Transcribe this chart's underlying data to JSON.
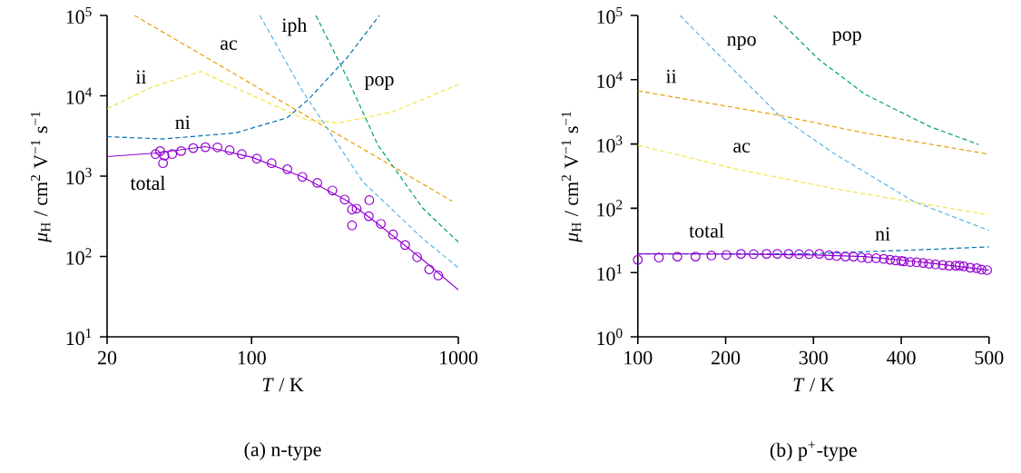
{
  "chart_data": [
    {
      "type": "line",
      "xlabel": "*T* / K",
      "ylabel": "*μ*$_{H}$ / cm$^{2}$ V$^{−1}$ s$^{−1}$",
      "annotations": [
        "(a) n-type"
      ],
      "log": "xy",
      "xlim": [
        20,
        1000
      ],
      "ylim": [
        10,
        100000
      ],
      "xticks": [
        20,
        100,
        1000
      ],
      "yticks": [
        {
          "value": 10,
          "label": "10$^{1}$"
        },
        {
          "value": 100,
          "label": "10$^{2}$"
        },
        {
          "value": 1000,
          "label": "10$^{3}$"
        },
        {
          "value": 10000,
          "label": "10$^{4}$"
        },
        {
          "value": 100000,
          "label": "10$^{5}$"
        }
      ],
      "series": [
        {
          "name": "ac",
          "color": "#e69f00",
          "line_style": "dashed",
          "x": [
            27.1,
            932
          ],
          "values": [
            100000,
            489
          ]
        },
        {
          "name": "ii",
          "color": "#f0e442",
          "line_style": "dashed",
          "x": [
            20,
            32.6,
            56.8,
            95.8,
            182,
            263,
            483,
            1000
          ],
          "values": [
            6900,
            12700,
            20100,
            10700,
            5090,
            4550,
            6330,
            13800
          ]
        },
        {
          "name": "ni",
          "color": "#0072b2",
          "line_style": "dashed",
          "x": [
            20,
            37.3,
            83.8,
            148.6,
            188,
            291,
            415
          ],
          "values": [
            3100,
            2900,
            3450,
            5320,
            8960,
            30200,
            100000
          ]
        },
        {
          "name": "iph",
          "color": "#56b4e9",
          "line_style": "dashed",
          "x": [
            109.6,
            175.8,
            344,
            676,
            1000
          ],
          "values": [
            100000,
            11600,
            859,
            165,
            72.5
          ]
        },
        {
          "name": "pop",
          "color": "#009e73",
          "line_style": "dashed",
          "x": [
            204.6,
            291,
            408,
            676,
            1000
          ],
          "values": [
            100000,
            16400,
            2440,
            394,
            151
          ]
        },
        {
          "name": "total",
          "color": "#9400d3",
          "line_style": "solid",
          "x": [
            20,
            33.7,
            59.8,
            100,
            176,
            291,
            408,
            676,
            1000
          ],
          "values": [
            1750,
            1930,
            2330,
            1720,
            980,
            489,
            255,
            90,
            38.5
          ]
        },
        {
          "type": "scatter",
          "marker": "circle",
          "color": "#9400d3",
          "x": [
            34.3,
            36.1,
            37.3,
            37.9,
            41.3,
            45.6,
            52.2,
            59.8,
            68.4,
            78.3,
            89.6,
            106,
            125,
            149,
            176,
            208,
            246,
            282,
            306,
            306,
            322,
            369,
            371,
            422,
            483,
            553,
            632,
            723,
            800
          ],
          "values": [
            1880,
            2050,
            1450,
            1800,
            1880,
            2050,
            2230,
            2290,
            2280,
            2100,
            1880,
            1650,
            1450,
            1220,
            980,
            824,
            663,
            511,
            244,
            384,
            394,
            317,
            502,
            255,
            188,
            139,
            98,
            69,
            58
          ]
        }
      ]
    },
    {
      "type": "line",
      "xlabel": "*T* / K",
      "ylabel": "*μ*$_{H}$ / cm$^{2}$ V$^{−1}$ s$^{−1}$",
      "annotations": [
        "(b) p$^{+}$-type"
      ],
      "log": "y",
      "xlim": [
        100,
        500
      ],
      "ylim": [
        1,
        100000
      ],
      "xticks": [
        100,
        200,
        300,
        400,
        500
      ],
      "yticks": [
        {
          "value": 1,
          "label": "10$^{0}$"
        },
        {
          "value": 10,
          "label": "10$^{1}$"
        },
        {
          "value": 100,
          "label": "10$^{2}$"
        },
        {
          "value": 1000,
          "label": "10$^{3}$"
        },
        {
          "value": 10000,
          "label": "10$^{4}$"
        },
        {
          "value": 100000,
          "label": "10$^{5}$"
        }
      ],
      "series": [
        {
          "name": "npo",
          "color": "#56b4e9",
          "line_style": "dashed",
          "x": [
            148,
            203.4,
            260.7,
            321.6,
            413.9,
            500
          ],
          "values": [
            100000,
            17000,
            2800,
            736,
            128,
            45
          ]
        },
        {
          "name": "pop",
          "color": "#009e73",
          "line_style": "dashed",
          "x": [
            255,
            306.8,
            358.5,
            432.4,
            487.8
          ],
          "values": [
            100000,
            20300,
            5960,
            1870,
            984
          ]
        },
        {
          "name": "ii",
          "color": "#e69f00",
          "line_style": "dashed",
          "x": [
            100,
            260.7,
            358.5,
            500
          ],
          "values": [
            6720,
            2800,
            1480,
            693
          ]
        },
        {
          "name": "ac",
          "color": "#f0e442",
          "line_style": "dashed",
          "x": [
            100,
            210.8,
            321.6,
            500
          ],
          "values": [
            961,
            411,
            204,
            78.7
          ]
        },
        {
          "name": "ni",
          "color": "#0072b2",
          "line_style": "dashed",
          "x": [
            100,
            300,
            358.5,
            432.4,
            500
          ],
          "values": [
            19.5,
            19.6,
            21.1,
            22.9,
            25.1
          ]
        },
        {
          "name": "total",
          "color": "#9400d3",
          "line_style": "solid",
          "x": [
            100,
            210.8,
            303,
            358.5,
            432.4,
            500
          ],
          "values": [
            19.5,
            19.4,
            18.8,
            17.7,
            14.1,
            10.9
          ]
        },
        {
          "type": "scatter",
          "marker": "circle",
          "color": "#9400d3",
          "x": [
            100,
            124,
            145,
            165.7,
            183.8,
            200.8,
            217.5,
            231.9,
            246.6,
            258.8,
            271.7,
            283.6,
            295,
            306.8,
            317.9,
            326.4,
            336.4,
            345.6,
            354.8,
            362.2,
            371.5,
            380,
            387.3,
            393.6,
            399.9,
            402.9,
            410.2,
            417.6,
            425,
            431.7,
            439,
            447.2,
            454.6,
            462,
            466.4,
            471.2,
            478.6,
            486,
            491.5,
            497.8
          ],
          "values": [
            15.8,
            17.1,
            17.7,
            17.7,
            18.4,
            18.8,
            19.5,
            19.3,
            19.5,
            19.5,
            19.5,
            19.3,
            19.3,
            19.5,
            18.6,
            18.1,
            17.7,
            17.7,
            17.1,
            16.7,
            16.7,
            16.3,
            15.8,
            15.4,
            15.2,
            14.9,
            14.6,
            14.4,
            14.1,
            13.7,
            13.4,
            13.1,
            12.8,
            12.8,
            12.8,
            12.5,
            11.9,
            11.7,
            11.1,
            10.9
          ]
        }
      ]
    }
  ]
}
